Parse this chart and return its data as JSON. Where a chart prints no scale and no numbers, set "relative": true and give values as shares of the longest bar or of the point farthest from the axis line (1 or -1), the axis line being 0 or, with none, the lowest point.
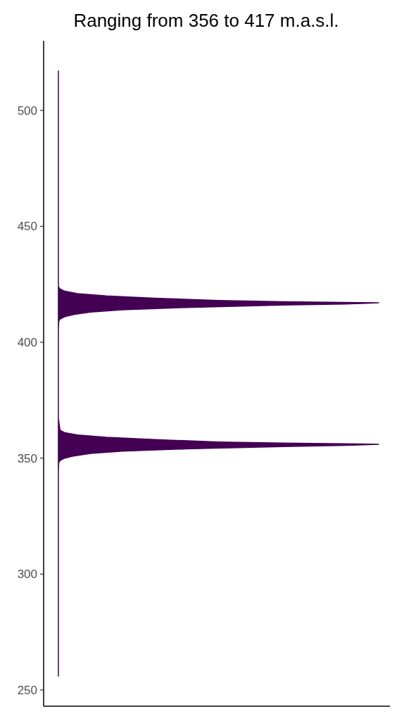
{
  "chart_data": {
    "type": "area",
    "orientation": "horizontal",
    "relative": true,
    "title": "Ranging from 356 to 417 m.a.s.l.",
    "series": [
      {
        "color": "#440154",
        "x": [
          256,
          344,
          348,
          349,
          350,
          351,
          352,
          353,
          354,
          355,
          355.5,
          356,
          356.5,
          357,
          358,
          359,
          360,
          361,
          362,
          367,
          405,
          409,
          410,
          411,
          412,
          413,
          414,
          415,
          416,
          416.5,
          417,
          417.5,
          418,
          419,
          420,
          421,
          422,
          423,
          424,
          517
        ],
        "values": [
          0.044,
          0.044,
          0.045,
          0.049,
          0.063,
          0.092,
          0.14,
          0.235,
          0.426,
          0.713,
          0.904,
          1,
          0.713,
          0.522,
          0.331,
          0.187,
          0.101,
          0.063,
          0.049,
          0.044,
          0.044,
          0.045,
          0.049,
          0.063,
          0.092,
          0.14,
          0.235,
          0.426,
          0.713,
          0.904,
          1,
          0.713,
          0.522,
          0.331,
          0.187,
          0.101,
          0.063,
          0.049,
          0.044,
          0.044
        ]
      }
    ],
    "ylim": [
      243,
      530
    ],
    "yticks": [
      250,
      300,
      350,
      400,
      450,
      500
    ],
    "tick_labels": "y"
  }
}
